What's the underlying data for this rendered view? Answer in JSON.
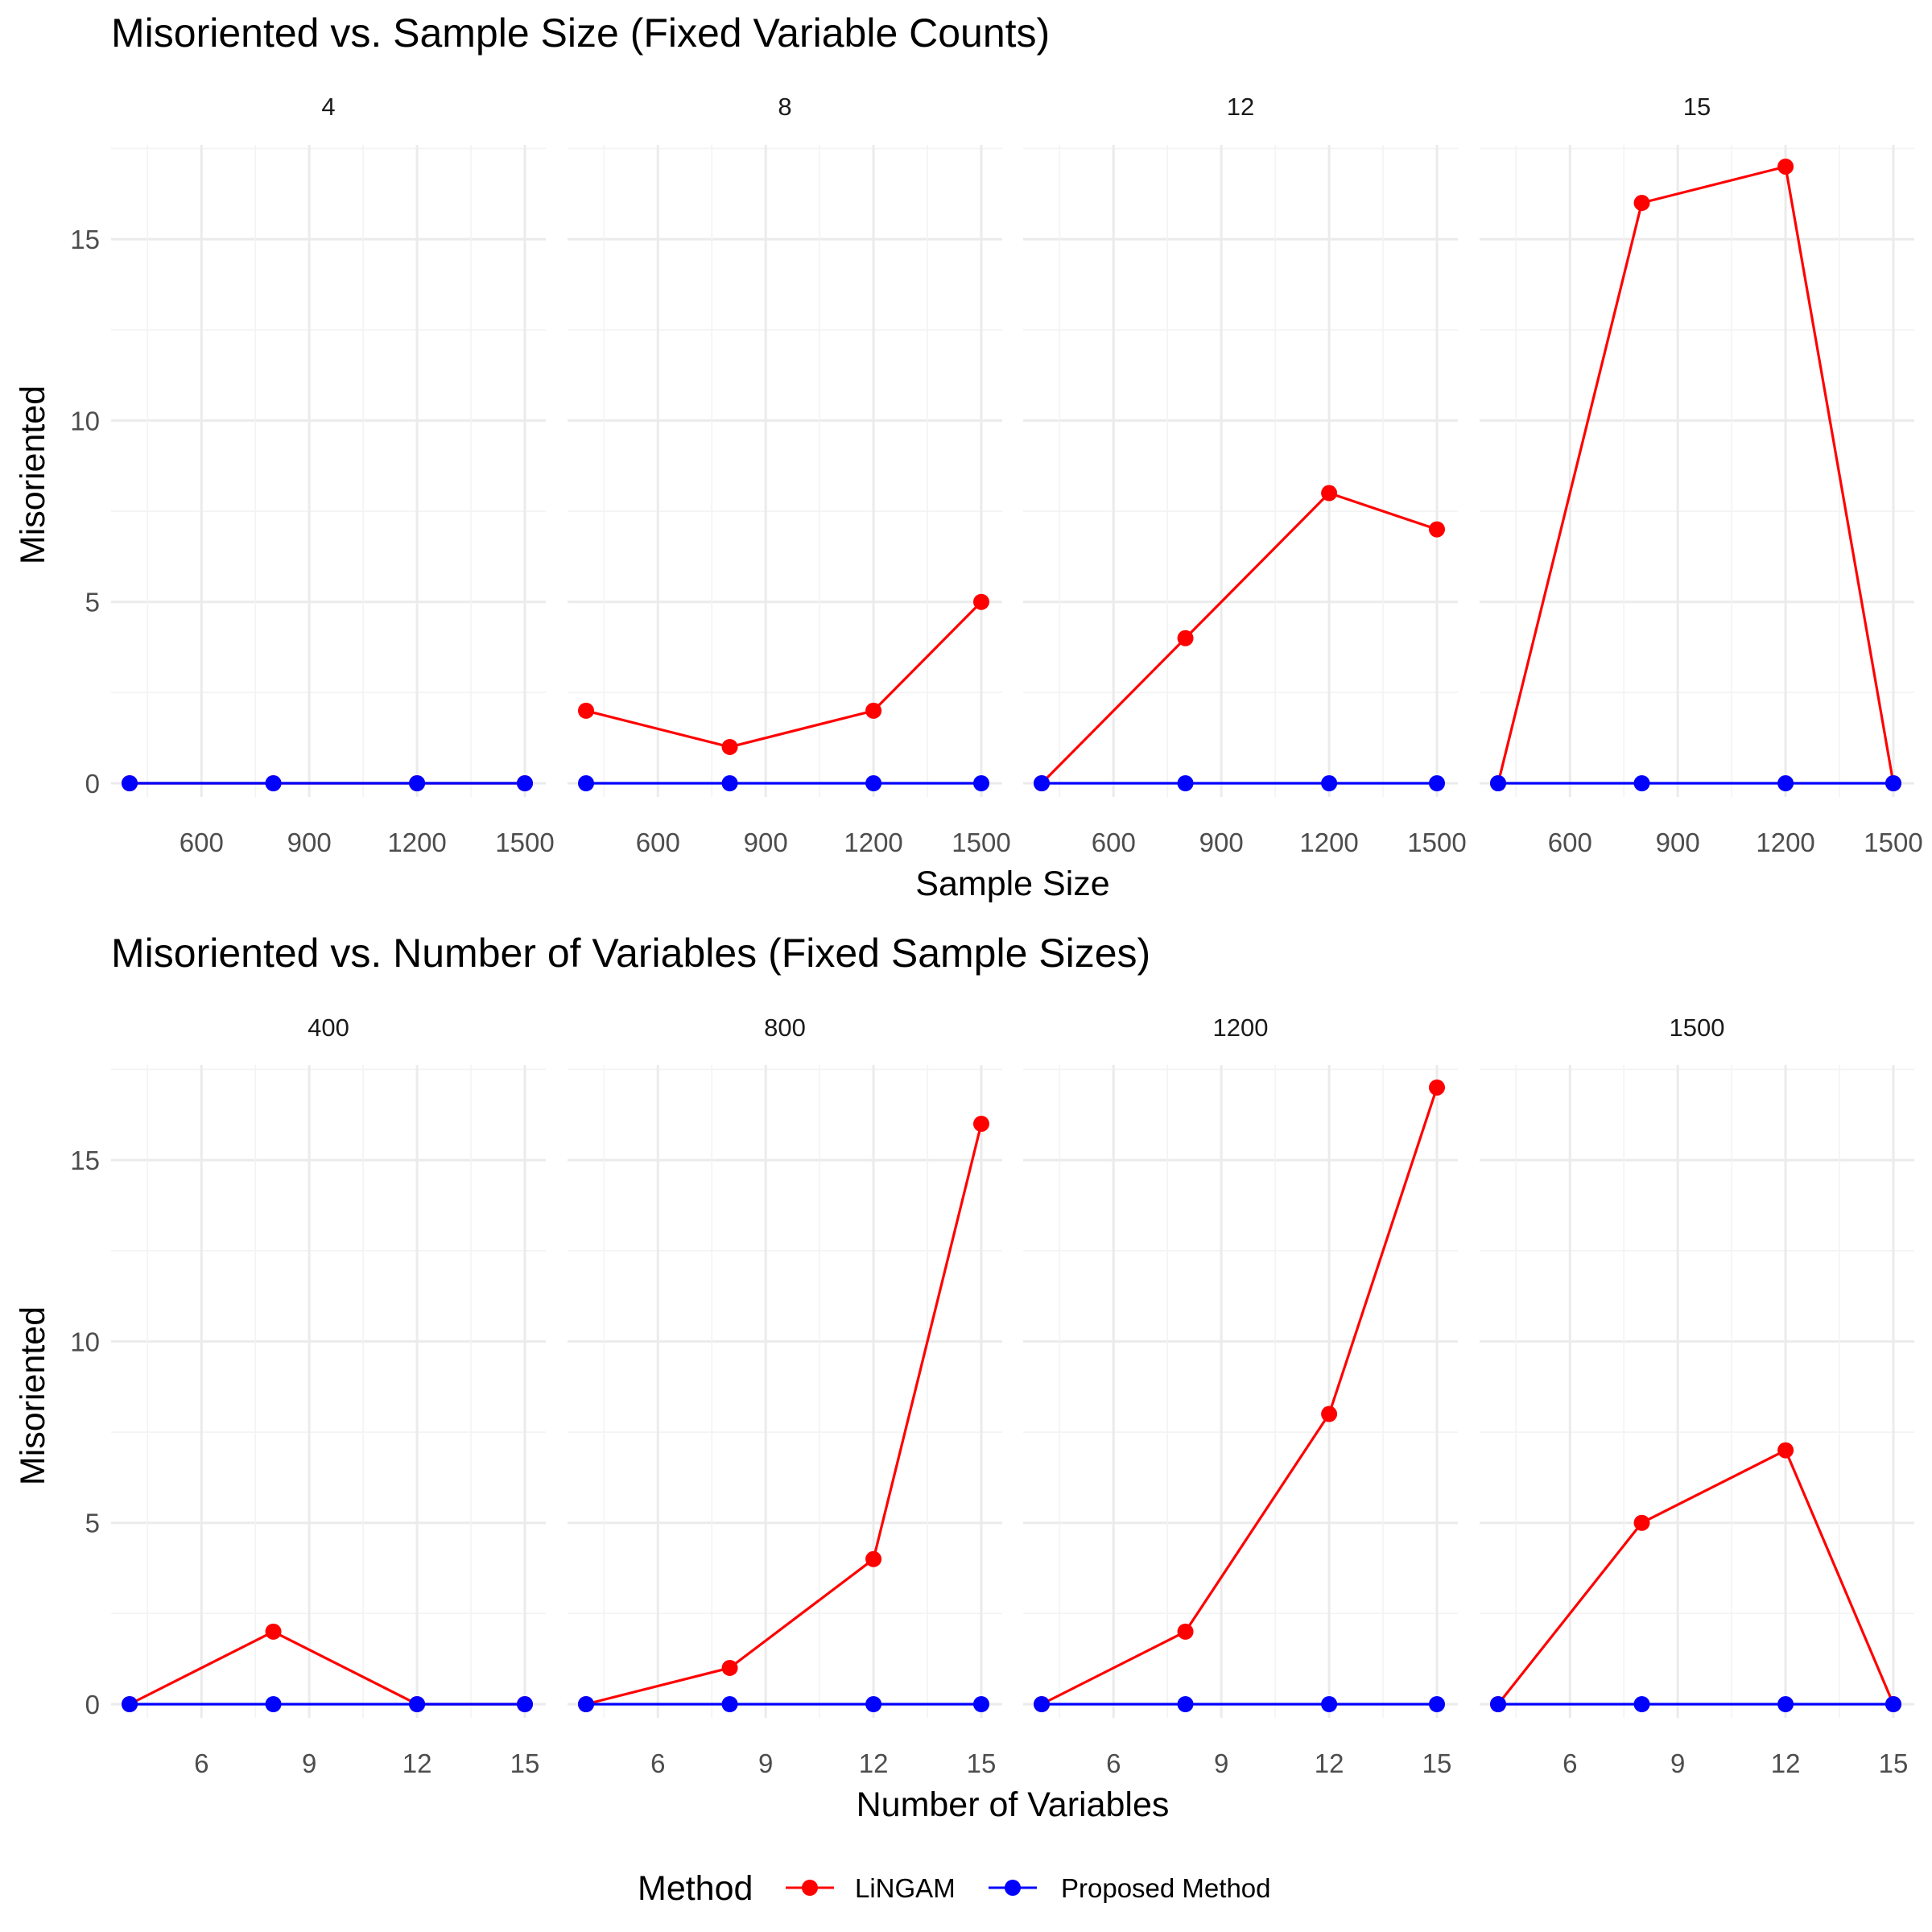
{
  "colors": {
    "LiNGAM": "#ff0000",
    "Proposed Method": "#0000ff"
  },
  "legend": {
    "title": "Method",
    "items": [
      {
        "label": "LiNGAM",
        "color": "#ff0000"
      },
      {
        "label": "Proposed Method",
        "color": "#0000ff"
      }
    ],
    "placement": "bottom"
  },
  "chart_data": [
    {
      "type": "line",
      "title": "Misoriented vs. Sample Size (Fixed Variable Counts)",
      "xlabel": "Sample Size",
      "ylabel": "Misoriented",
      "x_breaks": [
        600,
        900,
        1200,
        1500
      ],
      "x_range": [
        400,
        1500
      ],
      "y_breaks": [
        0,
        5,
        10,
        15
      ],
      "y_range": [
        0,
        17
      ],
      "grid": true,
      "facets": [
        {
          "label": "4",
          "x": [
            400,
            800,
            1200,
            1500
          ],
          "series": [
            {
              "name": "LiNGAM",
              "values": [
                0,
                0,
                0,
                0
              ]
            },
            {
              "name": "Proposed Method",
              "values": [
                0,
                0,
                0,
                0
              ]
            }
          ]
        },
        {
          "label": "8",
          "x": [
            400,
            800,
            1200,
            1500
          ],
          "series": [
            {
              "name": "LiNGAM",
              "values": [
                2,
                1,
                2,
                5
              ]
            },
            {
              "name": "Proposed Method",
              "values": [
                0,
                0,
                0,
                0
              ]
            }
          ]
        },
        {
          "label": "12",
          "x": [
            400,
            800,
            1200,
            1500
          ],
          "series": [
            {
              "name": "LiNGAM",
              "values": [
                0,
                4,
                8,
                7
              ]
            },
            {
              "name": "Proposed Method",
              "values": [
                0,
                0,
                0,
                0
              ]
            }
          ]
        },
        {
          "label": "15",
          "x": [
            400,
            800,
            1200,
            1500
          ],
          "series": [
            {
              "name": "LiNGAM",
              "values": [
                0,
                16,
                17,
                0
              ]
            },
            {
              "name": "Proposed Method",
              "values": [
                0,
                0,
                0,
                0
              ]
            }
          ]
        }
      ]
    },
    {
      "type": "line",
      "title": "Misoriented vs. Number of Variables (Fixed Sample Sizes)",
      "xlabel": "Number of Variables",
      "ylabel": "Misoriented",
      "x_breaks": [
        6,
        9,
        12,
        15
      ],
      "x_range": [
        4,
        15
      ],
      "y_breaks": [
        0,
        5,
        10,
        15
      ],
      "y_range": [
        0,
        17
      ],
      "grid": true,
      "facets": [
        {
          "label": "400",
          "x": [
            4,
            8,
            12,
            15
          ],
          "series": [
            {
              "name": "LiNGAM",
              "values": [
                0,
                2,
                0,
                0
              ]
            },
            {
              "name": "Proposed Method",
              "values": [
                0,
                0,
                0,
                0
              ]
            }
          ]
        },
        {
          "label": "800",
          "x": [
            4,
            8,
            12,
            15
          ],
          "series": [
            {
              "name": "LiNGAM",
              "values": [
                0,
                1,
                4,
                16
              ]
            },
            {
              "name": "Proposed Method",
              "values": [
                0,
                0,
                0,
                0
              ]
            }
          ]
        },
        {
          "label": "1200",
          "x": [
            4,
            8,
            12,
            15
          ],
          "series": [
            {
              "name": "LiNGAM",
              "values": [
                0,
                2,
                8,
                17
              ]
            },
            {
              "name": "Proposed Method",
              "values": [
                0,
                0,
                0,
                0
              ]
            }
          ]
        },
        {
          "label": "1500",
          "x": [
            4,
            8,
            12,
            15
          ],
          "series": [
            {
              "name": "LiNGAM",
              "values": [
                0,
                5,
                7,
                0
              ]
            },
            {
              "name": "Proposed Method",
              "values": [
                0,
                0,
                0,
                0
              ]
            }
          ]
        }
      ]
    }
  ]
}
